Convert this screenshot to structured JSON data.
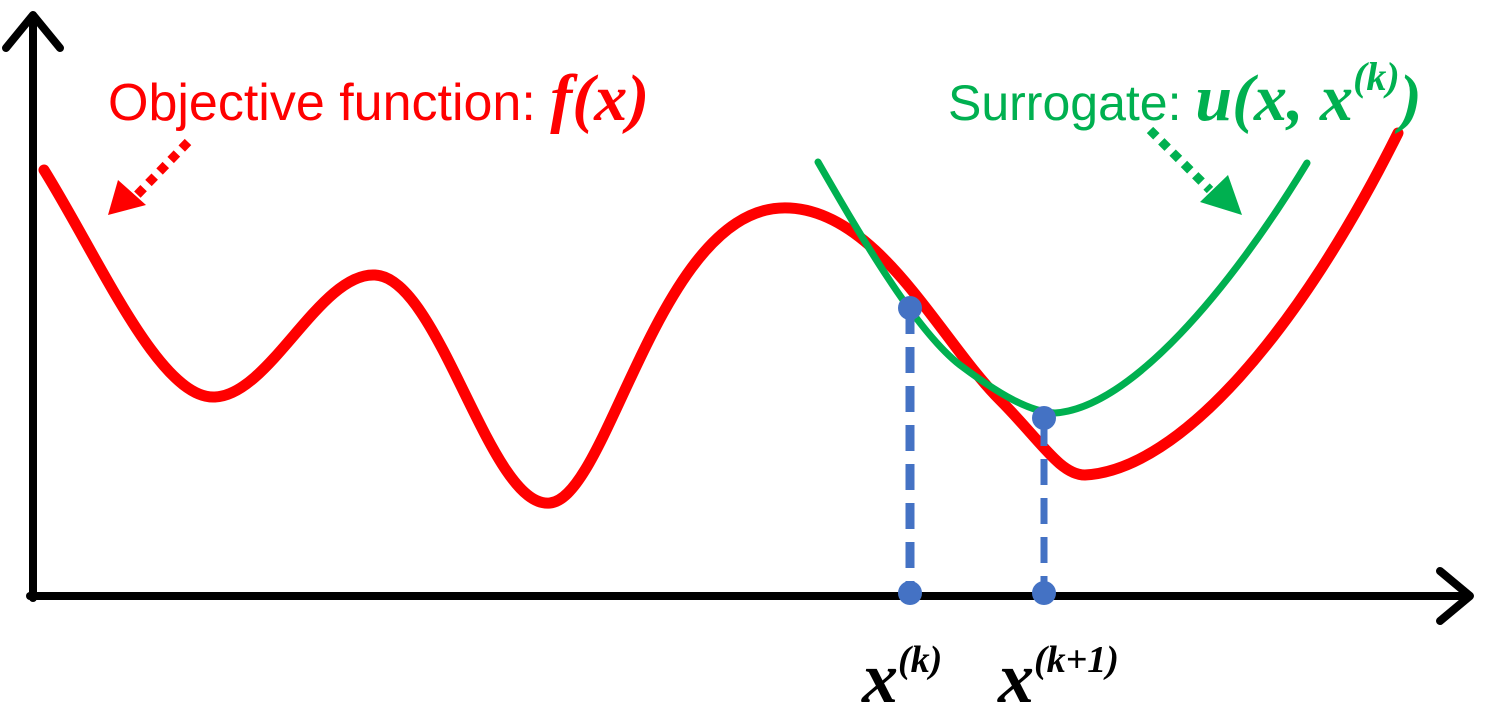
{
  "colors": {
    "objective": "#ff0000",
    "surrogate": "#00b050",
    "points": "#4472c4",
    "axes": "#000000"
  },
  "labels": {
    "objective_text": "Objective function: ",
    "objective_math": "f(x)",
    "surrogate_text": "Surrogate: ",
    "surrogate_math_prefix": "u(x, x",
    "surrogate_math_sup": "(k)",
    "surrogate_math_suffix": ")",
    "xk_base": "x",
    "xk_sup": "(k)",
    "xk1_base": "x",
    "xk1_sup": "(k+1)"
  }
}
